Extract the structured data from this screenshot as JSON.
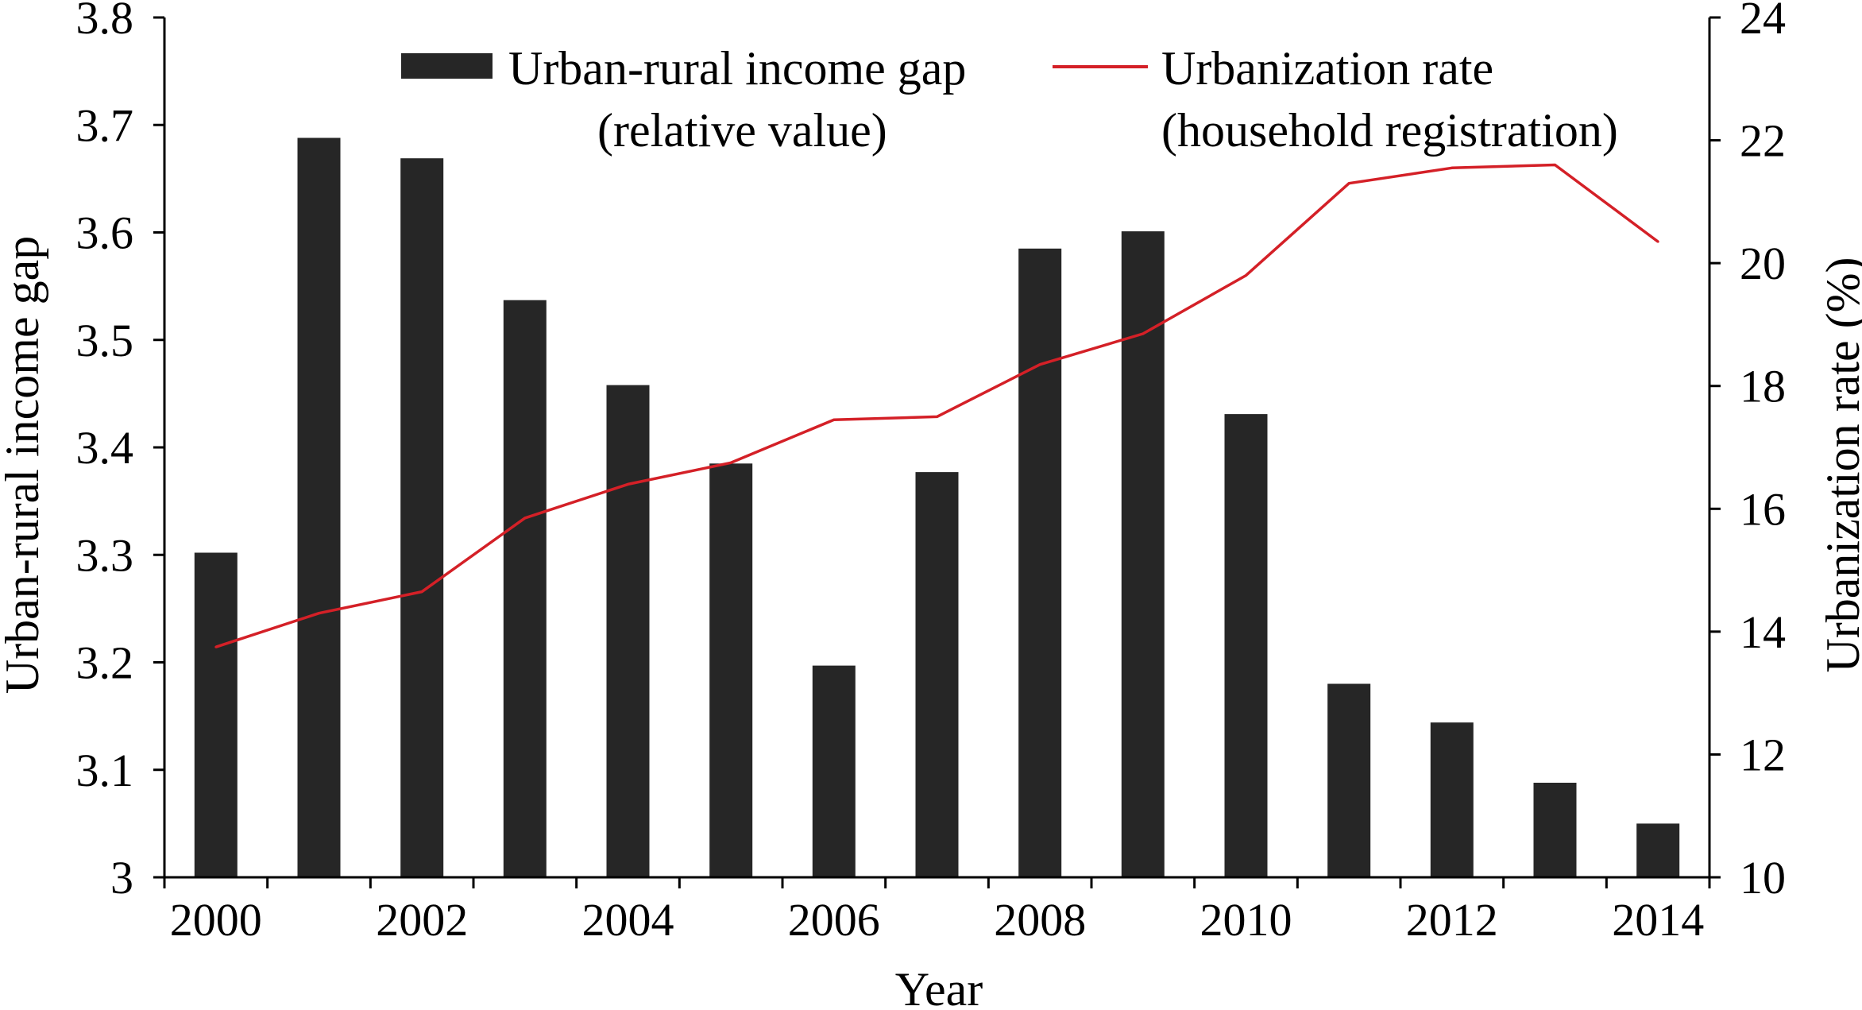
{
  "chart_data": {
    "type": "bar",
    "x": [
      2000,
      2001,
      2002,
      2003,
      2004,
      2005,
      2006,
      2007,
      2008,
      2009,
      2010,
      2011,
      2012,
      2013,
      2014
    ],
    "x_tick_labels": [
      "2000",
      "2002",
      "2004",
      "2006",
      "2008",
      "2010",
      "2012",
      "2014"
    ],
    "xlabel": "Year",
    "ylabel_left": "Urban-rural income gap",
    "ylabel_right": "Urbanization rate (%)",
    "ylim_left": [
      3,
      3.8
    ],
    "ylim_right": [
      10,
      24
    ],
    "yticks_left": [
      "3",
      "3.1",
      "3.2",
      "3.3",
      "3.4",
      "3.5",
      "3.6",
      "3.7",
      "3.8"
    ],
    "yticks_right": [
      "10",
      "12",
      "14",
      "16",
      "18",
      "20",
      "22",
      "24"
    ],
    "grid": false,
    "legend_position": "top",
    "series": [
      {
        "type": "bar",
        "axis": "left",
        "legend_line1": "Urban-rural income gap",
        "legend_line2": "(relative value)",
        "color": "#262626",
        "values": [
          3.302,
          3.688,
          3.669,
          3.537,
          3.458,
          3.385,
          3.197,
          3.377,
          3.585,
          3.601,
          3.431,
          3.18,
          3.144,
          3.088,
          3.05
        ]
      },
      {
        "type": "line",
        "axis": "right",
        "legend_line1": "Urbanization rate",
        "legend_line2": "(household registration)",
        "color": "#d42027",
        "values": [
          13.75,
          14.3,
          14.65,
          15.85,
          16.4,
          16.75,
          17.45,
          17.5,
          18.35,
          18.85,
          19.8,
          21.3,
          21.55,
          21.6,
          20.35
        ]
      }
    ]
  }
}
